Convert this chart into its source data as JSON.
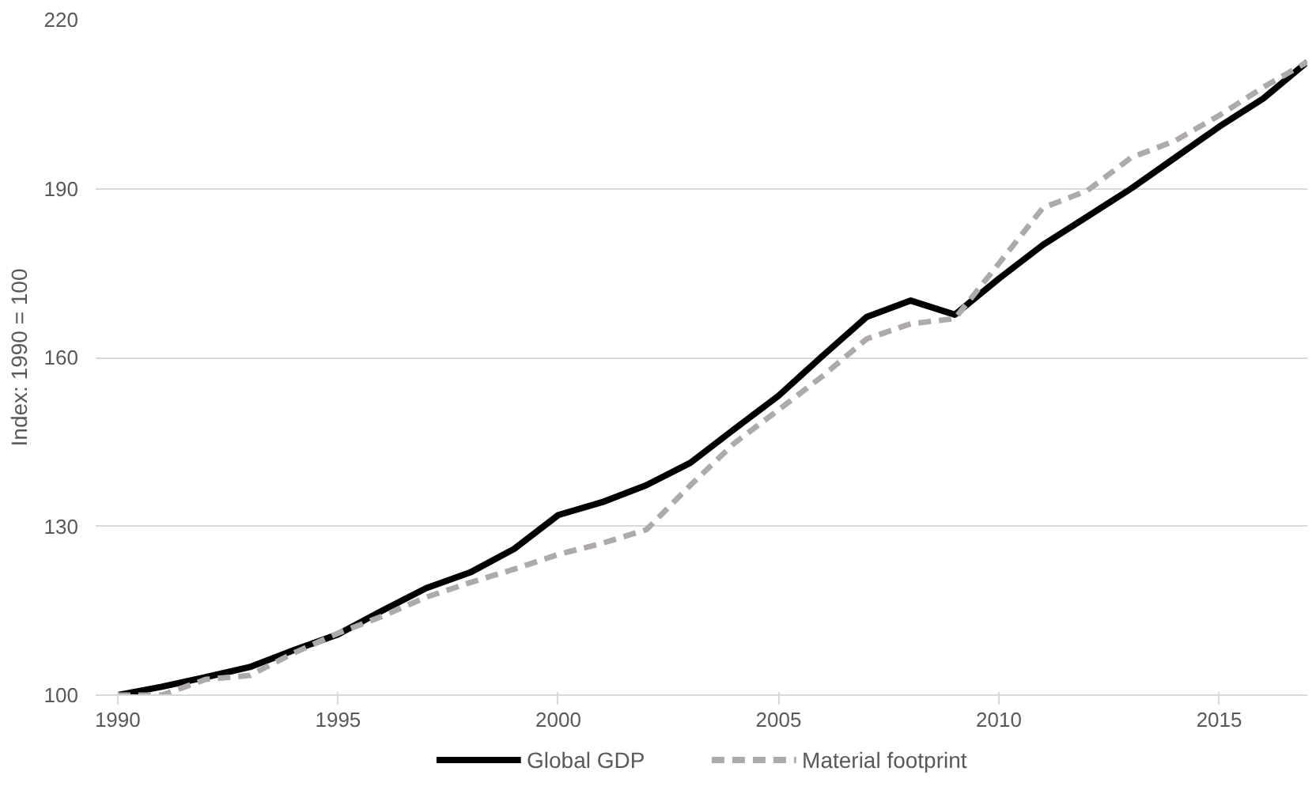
{
  "chart_data": {
    "type": "line",
    "ylabel": "Index: 1990 = 100",
    "categories": [
      "1990",
      null,
      null,
      null,
      null,
      "1995",
      null,
      null,
      null,
      null,
      "2000",
      null,
      null,
      null,
      null,
      "2005",
      null,
      null,
      null,
      null,
      "2010",
      null,
      null,
      null,
      null,
      "2015",
      null,
      null
    ],
    "series": [
      {
        "name": "Global GDP",
        "color": "#000000",
        "line_style": "solid",
        "values": [
          100,
          101.5,
          103.2,
          105,
          108,
          110.8,
          115,
          119,
          121.8,
          126,
          132,
          134.3,
          137.3,
          141.3,
          147.3,
          153.2,
          160.3,
          167.2,
          170.1,
          167.6,
          174,
          180,
          185,
          190,
          195.5,
          201,
          206,
          212.5
        ]
      },
      {
        "name": "Material footprint",
        "color": "#aeaaaa",
        "line_style": "dashed",
        "values": [
          100,
          100,
          102.8,
          103.5,
          107.5,
          111,
          114,
          117.4,
          120,
          122.4,
          125,
          127,
          129.4,
          137.3,
          144.8,
          150.7,
          156.7,
          163.3,
          166,
          166.9,
          176.7,
          186.6,
          189.6,
          195.5,
          198.5,
          203,
          208,
          212.5
        ]
      }
    ],
    "ylim": [
      100,
      220
    ],
    "yticks": [
      100,
      130,
      160,
      190,
      220
    ],
    "grid": "y",
    "legend": "bottom",
    "marker": "none"
  }
}
